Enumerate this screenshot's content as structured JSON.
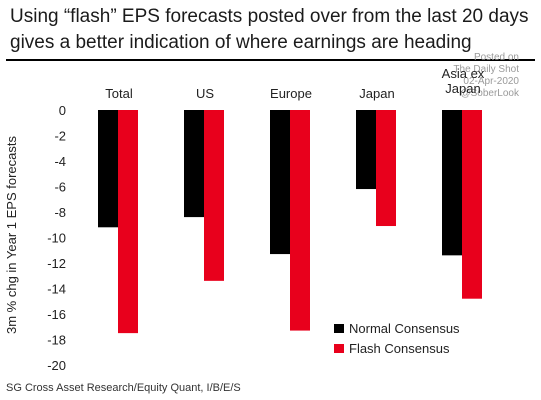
{
  "title_lines": [
    "Using “flash” EPS forecasts posted over from the last 20 days",
    "gives a better indication of where earnings are heading"
  ],
  "watermark": {
    "line1": "Posted on",
    "line2": "The Daily Shot",
    "line3": "02-Apr-2020",
    "line4": "@SoberLook"
  },
  "source": "SG Cross Asset Research/Equity Quant, I/B/E/S",
  "colors": {
    "normal": "#000000",
    "flash": "#e8001c"
  },
  "chart_data": {
    "type": "bar",
    "categories": [
      "Total",
      "US",
      "Europe",
      "Japan",
      "Asia ex Japan"
    ],
    "category_label_lines": [
      [
        "Total"
      ],
      [
        "US"
      ],
      [
        "Europe"
      ],
      [
        "Japan"
      ],
      [
        "Asia ex",
        "Japan"
      ]
    ],
    "series": [
      {
        "name": "Normal Consensus",
        "values": [
          -9.2,
          -8.4,
          -11.3,
          -6.2,
          -11.4
        ]
      },
      {
        "name": "Flash Consensus",
        "values": [
          -17.5,
          -13.4,
          -17.3,
          -9.1,
          -14.8
        ]
      }
    ],
    "ylabel": "3m % chg in Year 1 EPS forecasts",
    "ylim": [
      -20,
      0
    ],
    "yticks": [
      0,
      -2,
      -4,
      -6,
      -8,
      -10,
      -12,
      -14,
      -16,
      -18,
      -20
    ],
    "grid": false,
    "legend": "bottom-right",
    "category_labels_position": "top"
  }
}
